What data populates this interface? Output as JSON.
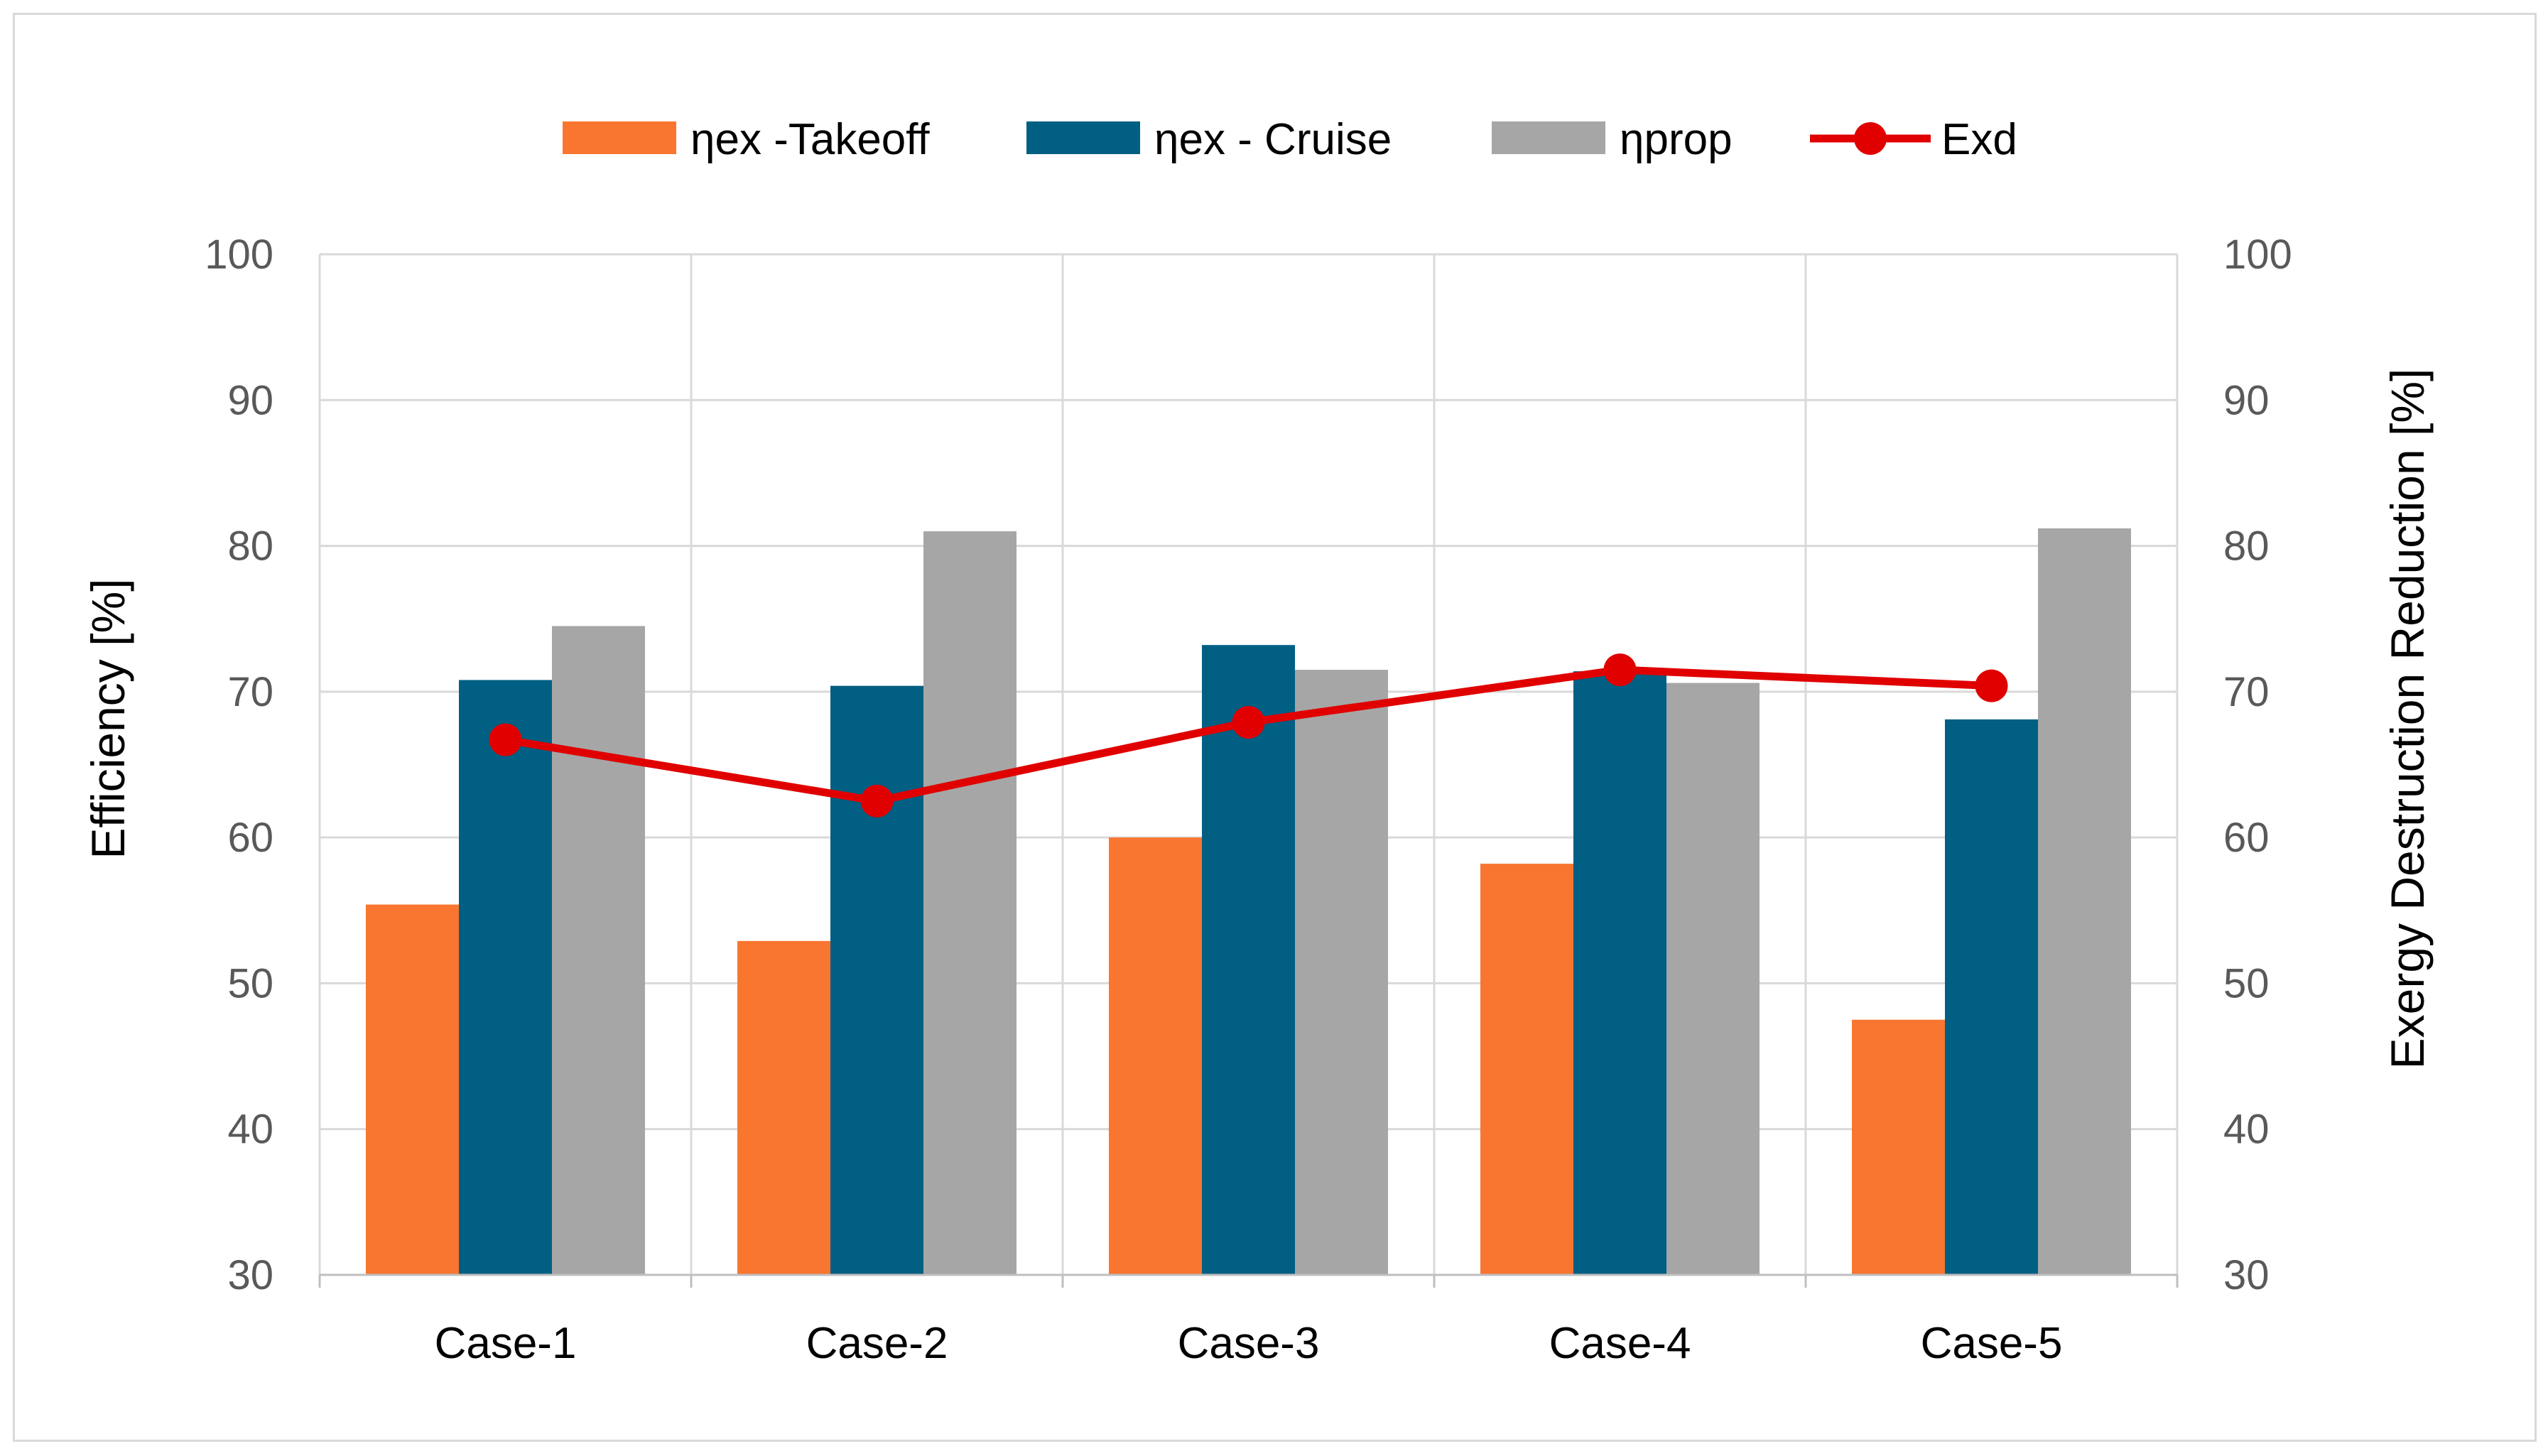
{
  "chart_data": {
    "type": "bar",
    "categories": [
      "Case-1",
      "Case-2",
      "Case-3",
      "Case-4",
      "Case-5"
    ],
    "series": [
      {
        "name": "ηex -Takeoff",
        "kind": "bar",
        "axis": "left",
        "color": "#F97630",
        "values": [
          55.4,
          52.9,
          60.0,
          58.2,
          47.5
        ]
      },
      {
        "name": "ηex  - Cruise",
        "kind": "bar",
        "axis": "left",
        "color": "#005F83",
        "values": [
          70.8,
          70.4,
          73.2,
          71.4,
          68.1
        ]
      },
      {
        "name": "ηprop",
        "kind": "bar",
        "axis": "left",
        "color": "#A6A6A6",
        "values": [
          74.5,
          81.0,
          71.5,
          70.6,
          81.2
        ]
      },
      {
        "name": "Exd",
        "kind": "line",
        "axis": "right",
        "color": "#E00000",
        "values": [
          66.7,
          62.5,
          67.9,
          71.5,
          70.4
        ]
      }
    ],
    "ylabel": "Efficiency [%]",
    "y2label": "Exergy Destruction Reduction [%]",
    "ylim": [
      30,
      100
    ],
    "y2lim": [
      30,
      100
    ],
    "yticks": [
      "30",
      "40",
      "50",
      "60",
      "70",
      "80",
      "90",
      "100"
    ],
    "y2ticks": [
      "30",
      "40",
      "50",
      "60",
      "70",
      "80",
      "90",
      "100"
    ],
    "grid": true,
    "legend_position": "top-center"
  }
}
